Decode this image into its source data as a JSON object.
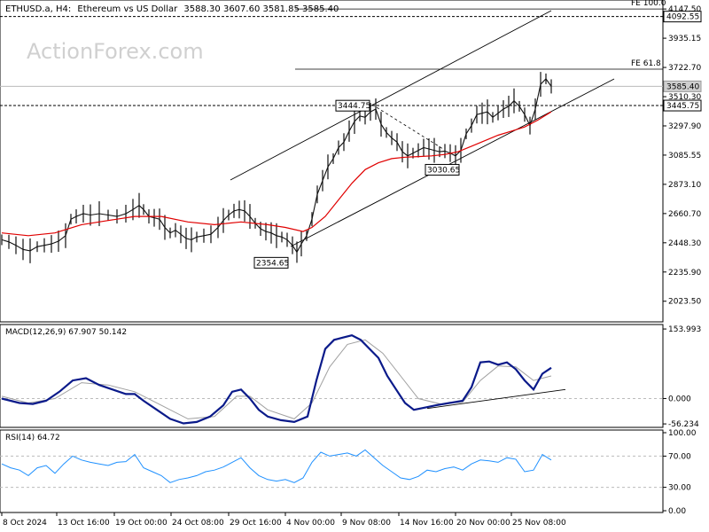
{
  "header": {
    "symbol": "ETHUSD.a, H4:",
    "description": "Ethereum vs US Dollar",
    "ohlc": "3588.30 3607.60 3581.85 3585.40"
  },
  "watermark": "ActionForex.com",
  "colors": {
    "candle": "#111111",
    "ma": "#e00000",
    "macd_main": "#0a1a8a",
    "macd_signal": "#a0a0a0",
    "rsi": "#1e90ff",
    "grid": "#c8c8c8",
    "trend": "#000000"
  },
  "chart_data": [
    {
      "type": "line",
      "title": "ETHUSD.a, H4: Ethereum vs US Dollar",
      "price_ticks": [
        "4147.50",
        "3935.15",
        "3722.70",
        "3510.30",
        "3297.90",
        "3085.55",
        "2873.10",
        "2660.70",
        "2448.30",
        "2235.90",
        "2023.50"
      ],
      "ylim": [
        1880,
        4200
      ],
      "x_labels": [
        "8 Oct 2024",
        "13 Oct 16:00",
        "19 Oct 00:00",
        "24 Oct 08:00",
        "29 Oct 16:00",
        "4 Nov 00:00",
        "9 Nov 08:00",
        "14 Nov 16:00",
        "20 Nov 00:00",
        "25 Nov 08:00"
      ],
      "price_path": [
        [
          0,
          2470
        ],
        [
          8,
          2455
        ],
        [
          16,
          2430
        ],
        [
          24,
          2400
        ],
        [
          32,
          2390
        ],
        [
          40,
          2420
        ],
        [
          48,
          2430
        ],
        [
          56,
          2440
        ],
        [
          64,
          2460
        ],
        [
          72,
          2500
        ],
        [
          78,
          2620
        ],
        [
          84,
          2640
        ],
        [
          92,
          2660
        ],
        [
          100,
          2650
        ],
        [
          110,
          2660
        ],
        [
          120,
          2650
        ],
        [
          130,
          2640
        ],
        [
          140,
          2660
        ],
        [
          148,
          2690
        ],
        [
          155,
          2720
        ],
        [
          160,
          2690
        ],
        [
          166,
          2640
        ],
        [
          172,
          2630
        ],
        [
          178,
          2620
        ],
        [
          184,
          2560
        ],
        [
          190,
          2520
        ],
        [
          196,
          2540
        ],
        [
          202,
          2510
        ],
        [
          208,
          2480
        ],
        [
          214,
          2470
        ],
        [
          220,
          2490
        ],
        [
          228,
          2500
        ],
        [
          236,
          2510
        ],
        [
          244,
          2560
        ],
        [
          250,
          2610
        ],
        [
          256,
          2650
        ],
        [
          262,
          2680
        ],
        [
          268,
          2690
        ],
        [
          274,
          2680
        ],
        [
          280,
          2640
        ],
        [
          286,
          2590
        ],
        [
          292,
          2550
        ],
        [
          298,
          2530
        ],
        [
          304,
          2520
        ],
        [
          310,
          2500
        ],
        [
          316,
          2490
        ],
        [
          322,
          2470
        ],
        [
          328,
          2430
        ],
        [
          333,
          2380
        ],
        [
          338,
          2440
        ],
        [
          344,
          2500
        ],
        [
          350,
          2620
        ],
        [
          356,
          2800
        ],
        [
          362,
          2900
        ],
        [
          368,
          3000
        ],
        [
          374,
          3060
        ],
        [
          380,
          3140
        ],
        [
          386,
          3180
        ],
        [
          392,
          3260
        ],
        [
          398,
          3330
        ],
        [
          404,
          3370
        ],
        [
          410,
          3360
        ],
        [
          416,
          3400
        ],
        [
          422,
          3420
        ],
        [
          428,
          3310
        ],
        [
          434,
          3250
        ],
        [
          440,
          3210
        ],
        [
          446,
          3180
        ],
        [
          452,
          3110
        ],
        [
          458,
          3080
        ],
        [
          464,
          3100
        ],
        [
          470,
          3120
        ],
        [
          476,
          3140
        ],
        [
          482,
          3130
        ],
        [
          488,
          3120
        ],
        [
          494,
          3110
        ],
        [
          500,
          3115
        ],
        [
          506,
          3100
        ],
        [
          512,
          3080
        ],
        [
          518,
          3120
        ],
        [
          524,
          3240
        ],
        [
          530,
          3300
        ],
        [
          536,
          3380
        ],
        [
          542,
          3390
        ],
        [
          548,
          3400
        ],
        [
          554,
          3360
        ],
        [
          560,
          3390
        ],
        [
          566,
          3420
        ],
        [
          572,
          3440
        ],
        [
          578,
          3480
        ],
        [
          584,
          3440
        ],
        [
          590,
          3380
        ],
        [
          596,
          3300
        ],
        [
          602,
          3420
        ],
        [
          608,
          3600
        ],
        [
          614,
          3640
        ],
        [
          620,
          3585
        ]
      ],
      "ma_path": [
        [
          0,
          2520
        ],
        [
          30,
          2500
        ],
        [
          60,
          2520
        ],
        [
          90,
          2580
        ],
        [
          120,
          2610
        ],
        [
          150,
          2640
        ],
        [
          180,
          2640
        ],
        [
          210,
          2600
        ],
        [
          240,
          2580
        ],
        [
          270,
          2600
        ],
        [
          300,
          2580
        ],
        [
          320,
          2560
        ],
        [
          340,
          2530
        ],
        [
          350,
          2560
        ],
        [
          365,
          2640
        ],
        [
          380,
          2760
        ],
        [
          395,
          2880
        ],
        [
          410,
          2980
        ],
        [
          425,
          3030
        ],
        [
          440,
          3060
        ],
        [
          455,
          3070
        ],
        [
          470,
          3075
        ],
        [
          485,
          3080
        ],
        [
          500,
          3090
        ],
        [
          515,
          3110
        ],
        [
          530,
          3150
        ],
        [
          545,
          3190
        ],
        [
          560,
          3230
        ],
        [
          575,
          3260
        ],
        [
          590,
          3290
        ],
        [
          605,
          3340
        ],
        [
          620,
          3400
        ]
      ],
      "horizontal_levels": [
        {
          "value": 4092.55,
          "label": "4092.55",
          "style": "dashed",
          "boxed": true
        },
        {
          "value": 3445.75,
          "label": "3445.75",
          "style": "dashed",
          "boxed": true
        },
        {
          "value": 3585.4,
          "label": "3585.40",
          "style": "solid-grey",
          "boxed": true
        }
      ],
      "fib_levels": [
        {
          "value": 4147.5,
          "label": "FE 100.0"
        },
        {
          "value": 3710.0,
          "label": "FE 61.8"
        }
      ],
      "point_labels": [
        {
          "x": 422,
          "value": 3444.75,
          "label": "3444.75"
        },
        {
          "x": 305,
          "value": 2354.65,
          "label": "2354.65"
        },
        {
          "x": 498,
          "value": 3030.65,
          "label": "3030.65"
        }
      ]
    },
    {
      "type": "line",
      "title": "MACD(12,26,9) 67.907 50.142",
      "ticks": [
        "153.993",
        "0.000",
        "-56.234"
      ],
      "ylim": [
        -60,
        160
      ],
      "main_path": [
        [
          0,
          0
        ],
        [
          20,
          -10
        ],
        [
          35,
          -12
        ],
        [
          50,
          -5
        ],
        [
          65,
          15
        ],
        [
          80,
          40
        ],
        [
          95,
          45
        ],
        [
          110,
          30
        ],
        [
          125,
          20
        ],
        [
          140,
          10
        ],
        [
          150,
          10
        ],
        [
          160,
          -5
        ],
        [
          175,
          -25
        ],
        [
          190,
          -45
        ],
        [
          205,
          -55
        ],
        [
          220,
          -52
        ],
        [
          235,
          -40
        ],
        [
          250,
          -15
        ],
        [
          260,
          15
        ],
        [
          270,
          20
        ],
        [
          280,
          0
        ],
        [
          290,
          -25
        ],
        [
          300,
          -40
        ],
        [
          315,
          -48
        ],
        [
          330,
          -52
        ],
        [
          345,
          -40
        ],
        [
          355,
          40
        ],
        [
          365,
          110
        ],
        [
          375,
          130
        ],
        [
          385,
          135
        ],
        [
          395,
          140
        ],
        [
          405,
          130
        ],
        [
          415,
          110
        ],
        [
          425,
          90
        ],
        [
          435,
          50
        ],
        [
          445,
          20
        ],
        [
          455,
          -10
        ],
        [
          465,
          -25
        ],
        [
          478,
          -20
        ],
        [
          490,
          -15
        ],
        [
          505,
          -10
        ],
        [
          520,
          -5
        ],
        [
          530,
          25
        ],
        [
          540,
          80
        ],
        [
          550,
          82
        ],
        [
          560,
          75
        ],
        [
          570,
          80
        ],
        [
          580,
          65
        ],
        [
          590,
          40
        ],
        [
          600,
          20
        ],
        [
          610,
          55
        ],
        [
          620,
          68
        ]
      ],
      "signal_path": [
        [
          0,
          5
        ],
        [
          30,
          -10
        ],
        [
          60,
          0
        ],
        [
          90,
          35
        ],
        [
          120,
          30
        ],
        [
          150,
          15
        ],
        [
          180,
          -15
        ],
        [
          210,
          -45
        ],
        [
          240,
          -40
        ],
        [
          265,
          5
        ],
        [
          280,
          5
        ],
        [
          300,
          -25
        ],
        [
          330,
          -45
        ],
        [
          350,
          -10
        ],
        [
          370,
          70
        ],
        [
          390,
          120
        ],
        [
          410,
          130
        ],
        [
          430,
          100
        ],
        [
          450,
          50
        ],
        [
          470,
          0
        ],
        [
          495,
          -12
        ],
        [
          520,
          -8
        ],
        [
          540,
          40
        ],
        [
          560,
          72
        ],
        [
          580,
          70
        ],
        [
          600,
          40
        ],
        [
          620,
          50
        ]
      ],
      "trendline_label": ""
    },
    {
      "type": "line",
      "title": "RSI(14) 64.72",
      "ticks": [
        "100.00",
        "70.00",
        "30.00",
        "0.00"
      ],
      "ylim": [
        0,
        100
      ],
      "rsi_path": [
        [
          0,
          60
        ],
        [
          10,
          55
        ],
        [
          20,
          52
        ],
        [
          30,
          45
        ],
        [
          40,
          55
        ],
        [
          50,
          58
        ],
        [
          60,
          48
        ],
        [
          70,
          60
        ],
        [
          80,
          70
        ],
        [
          90,
          65
        ],
        [
          100,
          62
        ],
        [
          110,
          60
        ],
        [
          120,
          58
        ],
        [
          130,
          62
        ],
        [
          140,
          63
        ],
        [
          150,
          72
        ],
        [
          160,
          55
        ],
        [
          170,
          50
        ],
        [
          180,
          45
        ],
        [
          190,
          36
        ],
        [
          200,
          40
        ],
        [
          210,
          42
        ],
        [
          220,
          45
        ],
        [
          230,
          50
        ],
        [
          240,
          52
        ],
        [
          250,
          56
        ],
        [
          260,
          62
        ],
        [
          270,
          68
        ],
        [
          280,
          55
        ],
        [
          290,
          45
        ],
        [
          300,
          40
        ],
        [
          310,
          38
        ],
        [
          320,
          40
        ],
        [
          330,
          36
        ],
        [
          340,
          42
        ],
        [
          350,
          62
        ],
        [
          360,
          75
        ],
        [
          370,
          70
        ],
        [
          380,
          72
        ],
        [
          390,
          74
        ],
        [
          400,
          70
        ],
        [
          410,
          78
        ],
        [
          420,
          68
        ],
        [
          430,
          58
        ],
        [
          440,
          50
        ],
        [
          450,
          42
        ],
        [
          460,
          40
        ],
        [
          470,
          44
        ],
        [
          480,
          52
        ],
        [
          490,
          50
        ],
        [
          500,
          54
        ],
        [
          510,
          56
        ],
        [
          520,
          52
        ],
        [
          530,
          60
        ],
        [
          540,
          65
        ],
        [
          550,
          64
        ],
        [
          560,
          62
        ],
        [
          570,
          68
        ],
        [
          580,
          66
        ],
        [
          590,
          50
        ],
        [
          600,
          52
        ],
        [
          610,
          72
        ],
        [
          620,
          65
        ]
      ]
    }
  ]
}
